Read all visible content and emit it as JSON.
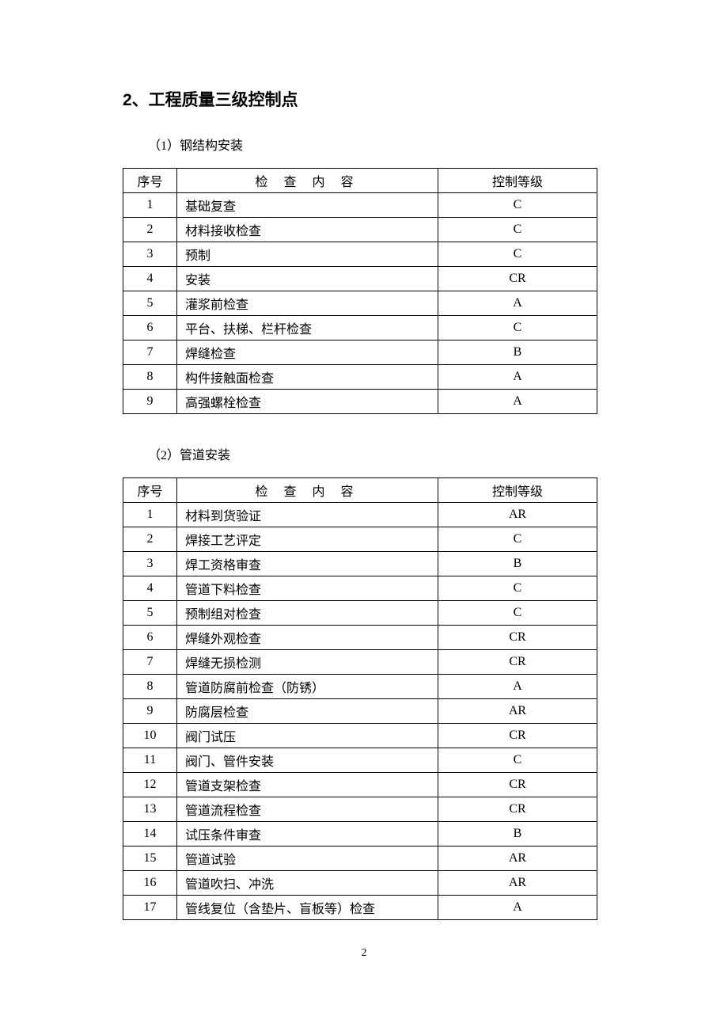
{
  "heading": "2、工程质量三级控制点",
  "section1": {
    "title": "（1）钢结构安装",
    "headers": {
      "num": "序号",
      "content": "检 查 内 容",
      "level": "控制等级"
    },
    "rows": [
      {
        "num": "1",
        "content": "基础复查",
        "level": "C"
      },
      {
        "num": "2",
        "content": "材料接收检查",
        "level": "C"
      },
      {
        "num": "3",
        "content": "预制",
        "level": "C"
      },
      {
        "num": "4",
        "content": "安装",
        "level": "CR"
      },
      {
        "num": "5",
        "content": "灌浆前检查",
        "level": "A"
      },
      {
        "num": "6",
        "content": "平台、扶梯、栏杆检查",
        "level": "C"
      },
      {
        "num": "7",
        "content": "焊缝检查",
        "level": "B"
      },
      {
        "num": "8",
        "content": "构件接触面检查",
        "level": "A"
      },
      {
        "num": "9",
        "content": "高强螺栓检查",
        "level": "A"
      }
    ]
  },
  "section2": {
    "title": "（2）管道安装",
    "headers": {
      "num": "序号",
      "content": "检 查 内 容",
      "level": "控制等级"
    },
    "rows": [
      {
        "num": "1",
        "content": "材料到货验证",
        "level": "AR"
      },
      {
        "num": "2",
        "content": "焊接工艺评定",
        "level": "C"
      },
      {
        "num": "3",
        "content": "焊工资格审查",
        "level": "B"
      },
      {
        "num": "4",
        "content": "管道下料检查",
        "level": "C"
      },
      {
        "num": "5",
        "content": "预制组对检查",
        "level": "C"
      },
      {
        "num": "6",
        "content": "焊缝外观检查",
        "level": "CR"
      },
      {
        "num": "7",
        "content": "焊缝无损检测",
        "level": "CR"
      },
      {
        "num": "8",
        "content": "管道防腐前检查（防锈）",
        "level": "A"
      },
      {
        "num": "9",
        "content": "防腐层检查",
        "level": "AR"
      },
      {
        "num": "10",
        "content": "阀门试压",
        "level": "CR"
      },
      {
        "num": "11",
        "content": "阀门、管件安装",
        "level": "C"
      },
      {
        "num": "12",
        "content": "管道支架检查",
        "level": "CR"
      },
      {
        "num": "13",
        "content": "管道流程检查",
        "level": "CR"
      },
      {
        "num": "14",
        "content": "试压条件审查",
        "level": "B"
      },
      {
        "num": "15",
        "content": "管道试验",
        "level": "AR"
      },
      {
        "num": "16",
        "content": "管道吹扫、冲洗",
        "level": "AR"
      },
      {
        "num": "17",
        "content": "管线复位（含垫片、盲板等）检查",
        "level": "A"
      }
    ]
  },
  "page_number": "2"
}
